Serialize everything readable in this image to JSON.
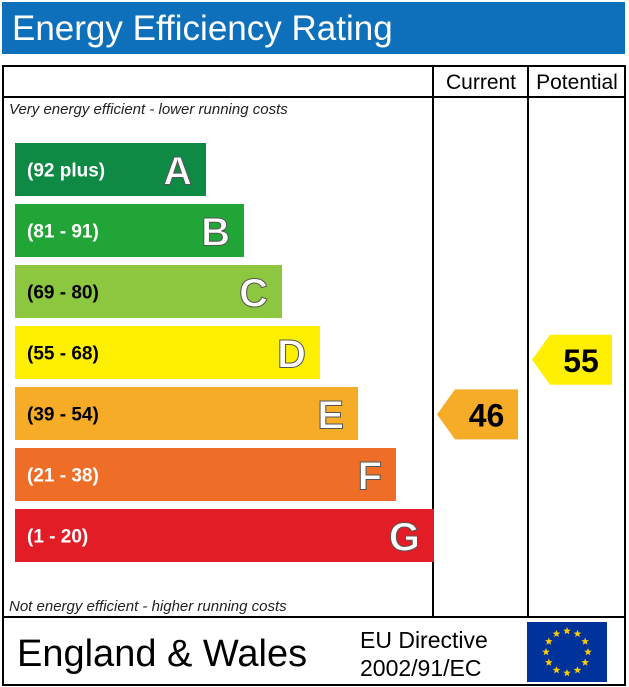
{
  "title": "Energy Efficiency Rating",
  "columns": {
    "current": "Current",
    "potential": "Potential"
  },
  "captions": {
    "top": "Very energy efficient - lower running costs",
    "bottom": "Not energy efficient - higher running costs"
  },
  "chart_data": {
    "type": "bar",
    "title": "Energy Efficiency Rating",
    "categories": [
      "A",
      "B",
      "C",
      "D",
      "E",
      "F",
      "G"
    ],
    "bands": [
      {
        "letter": "A",
        "range": "(92 plus)",
        "min": 92,
        "max": 100,
        "color": "#0f8a44"
      },
      {
        "letter": "B",
        "range": "(81 - 91)",
        "min": 81,
        "max": 91,
        "color": "#22a537"
      },
      {
        "letter": "C",
        "range": "(69 - 80)",
        "min": 69,
        "max": 80,
        "color": "#8dc63f"
      },
      {
        "letter": "D",
        "range": "(55 - 68)",
        "min": 55,
        "max": 68,
        "color": "#ffef00"
      },
      {
        "letter": "E",
        "range": "(39 - 54)",
        "min": 39,
        "max": 54,
        "color": "#f7ac28"
      },
      {
        "letter": "F",
        "range": "(21 - 38)",
        "min": 21,
        "max": 38,
        "color": "#ee6e27"
      },
      {
        "letter": "G",
        "range": "(1 - 20)",
        "min": 1,
        "max": 20,
        "color": "#e31d25"
      }
    ],
    "series": [
      {
        "name": "Current",
        "value": 46,
        "band": "E",
        "color": "#f7ac28"
      },
      {
        "name": "Potential",
        "value": 55,
        "band": "D",
        "color": "#ffef00"
      }
    ]
  },
  "footer": {
    "region": "England & Wales",
    "directive_line1": "EU Directive",
    "directive_line2": "2002/91/EC"
  },
  "eu_flag": {
    "icon": "eu-flag-icon",
    "background": "#003399",
    "stars": "#ffcc00"
  }
}
